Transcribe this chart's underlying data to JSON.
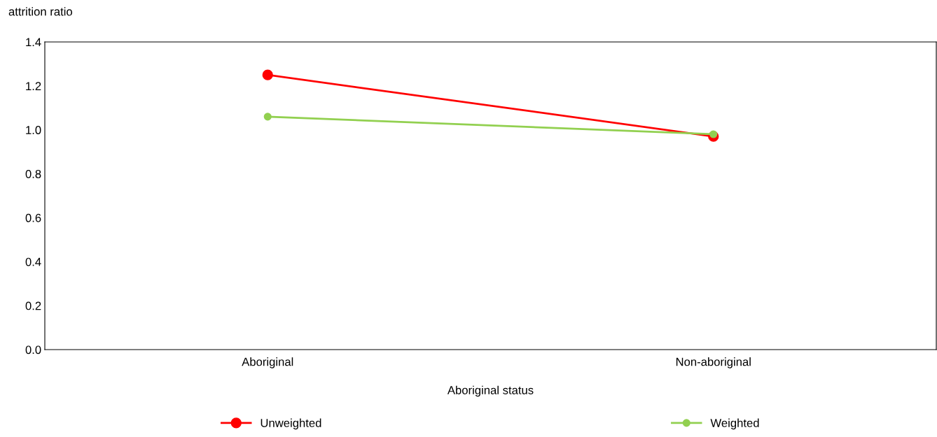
{
  "chart_data": {
    "type": "line",
    "ylabel": "attrition ratio",
    "xlabel": "Aboriginal status",
    "categories": [
      "Aboriginal",
      "Non-aboriginal"
    ],
    "series": [
      {
        "name": "Unweighted",
        "color": "#ff0000",
        "values": [
          1.25,
          0.97
        ]
      },
      {
        "name": "Weighted",
        "color": "#92d050",
        "values": [
          1.06,
          0.98
        ]
      }
    ],
    "ylim": [
      0,
      1.4
    ],
    "yticks": [
      {
        "value": 0,
        "label": "0.0"
      },
      0.2,
      0.4,
      0.6,
      0.8,
      {
        "value": 1,
        "label": "1.0"
      },
      1.2,
      1.4
    ],
    "grid": false,
    "legend": "bottom",
    "marker": "circle",
    "line_style": "solid"
  }
}
